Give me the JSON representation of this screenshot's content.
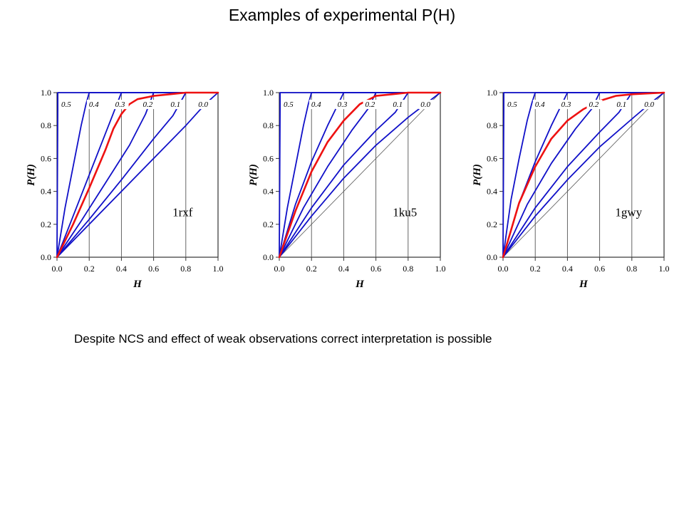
{
  "title": "Examples of experimental P(H)",
  "caption": "Despite NCS and effect of weak observations correct interpretation is possible",
  "colors": {
    "curves": "#1010c8",
    "highlight": "#ee1111",
    "grid": "#555555",
    "frame": "#333333"
  },
  "chart_data": [
    {
      "type": "line",
      "label": "1rxf",
      "xlabel": "H",
      "ylabel": "P(H)",
      "xlim": [
        0,
        1
      ],
      "ylim": [
        0,
        1
      ],
      "xticks": [
        "0.0",
        "0.2",
        "0.4",
        "0.6",
        "0.8",
        "1.0"
      ],
      "yticks": [
        "0.0",
        "0.2",
        "0.4",
        "0.6",
        "0.8",
        "1.0"
      ],
      "vlines": [
        0.2,
        0.4,
        0.6,
        0.8
      ],
      "diagonal": false,
      "curve_labels": [
        "0.5",
        "0.4",
        "0.3",
        "0.2",
        "0.1",
        "0.0"
      ],
      "series": [
        {
          "label": "0.5",
          "x": [
            0,
            0.005,
            0.005,
            1
          ],
          "y": [
            0,
            0.9,
            1.0,
            1.0
          ]
        },
        {
          "label": "0.4",
          "x": [
            0,
            0.05,
            0.1,
            0.15,
            0.18,
            0.2,
            1
          ],
          "y": [
            0,
            0.3,
            0.55,
            0.8,
            0.93,
            1.0,
            1.0
          ]
        },
        {
          "label": "0.3",
          "x": [
            0,
            0.1,
            0.2,
            0.3,
            0.36,
            0.4,
            1
          ],
          "y": [
            0,
            0.25,
            0.5,
            0.75,
            0.9,
            1.0,
            1.0
          ]
        },
        {
          "label": "0.2",
          "x": [
            0,
            0.15,
            0.3,
            0.45,
            0.55,
            0.6,
            1
          ],
          "y": [
            0,
            0.22,
            0.45,
            0.68,
            0.87,
            1.0,
            1.0
          ]
        },
        {
          "label": "0.1",
          "x": [
            0,
            0.2,
            0.4,
            0.6,
            0.72,
            0.8,
            1
          ],
          "y": [
            0,
            0.23,
            0.47,
            0.72,
            0.86,
            1.0,
            1.0
          ]
        },
        {
          "label": "0.0",
          "x": [
            0,
            0.2,
            0.4,
            0.6,
            0.8,
            0.92,
            1
          ],
          "y": [
            0,
            0.2,
            0.4,
            0.6,
            0.8,
            0.93,
            1.0
          ]
        },
        {
          "label": "highlight",
          "highlight": true,
          "x": [
            0,
            0.1,
            0.2,
            0.3,
            0.35,
            0.4,
            0.45,
            0.5,
            0.6,
            0.7,
            0.8,
            1
          ],
          "y": [
            0,
            0.2,
            0.42,
            0.65,
            0.78,
            0.87,
            0.93,
            0.96,
            0.98,
            0.99,
            1.0,
            1.0
          ]
        }
      ]
    },
    {
      "type": "line",
      "label": "1ku5",
      "xlabel": "H",
      "ylabel": "P(H)",
      "xlim": [
        0,
        1
      ],
      "ylim": [
        0,
        1
      ],
      "xticks": [
        "0.0",
        "0.2",
        "0.4",
        "0.6",
        "0.8",
        "1.0"
      ],
      "yticks": [
        "0.0",
        "0.2",
        "0.4",
        "0.6",
        "0.8",
        "1.0"
      ],
      "vlines": [
        0.2,
        0.4,
        0.6,
        0.8
      ],
      "diagonal": true,
      "curve_labels": [
        "0.5",
        "0.4",
        "0.3",
        "0.2",
        "0.1",
        "0.0"
      ],
      "series": [
        {
          "label": "0.5",
          "x": [
            0,
            0.005,
            0.005,
            1
          ],
          "y": [
            0,
            0.9,
            1.0,
            1.0
          ]
        },
        {
          "label": "0.4",
          "x": [
            0,
            0.05,
            0.1,
            0.15,
            0.18,
            0.2,
            1
          ],
          "y": [
            0,
            0.3,
            0.55,
            0.8,
            0.93,
            1.0,
            1.0
          ]
        },
        {
          "label": "0.3",
          "x": [
            0,
            0.1,
            0.2,
            0.3,
            0.36,
            0.4,
            1
          ],
          "y": [
            0,
            0.32,
            0.58,
            0.8,
            0.92,
            1.0,
            1.0
          ]
        },
        {
          "label": "0.2",
          "x": [
            0,
            0.15,
            0.3,
            0.45,
            0.55,
            0.6,
            1
          ],
          "y": [
            0,
            0.3,
            0.55,
            0.77,
            0.9,
            1.0,
            1.0
          ]
        },
        {
          "label": "0.1",
          "x": [
            0,
            0.2,
            0.4,
            0.6,
            0.72,
            0.8,
            1
          ],
          "y": [
            0,
            0.3,
            0.56,
            0.77,
            0.88,
            1.0,
            1.0
          ]
        },
        {
          "label": "0.0",
          "x": [
            0,
            0.2,
            0.4,
            0.6,
            0.8,
            0.92,
            1
          ],
          "y": [
            0,
            0.25,
            0.48,
            0.68,
            0.85,
            0.94,
            1.0
          ]
        },
        {
          "label": "highlight",
          "highlight": true,
          "x": [
            0,
            0.1,
            0.2,
            0.3,
            0.4,
            0.5,
            0.6,
            0.7,
            0.8,
            1
          ],
          "y": [
            0,
            0.28,
            0.52,
            0.7,
            0.83,
            0.93,
            0.98,
            0.99,
            1.0,
            1.0
          ]
        }
      ]
    },
    {
      "type": "line",
      "label": "1gwy",
      "xlabel": "H",
      "ylabel": "P(H)",
      "xlim": [
        0,
        1
      ],
      "ylim": [
        0,
        1
      ],
      "xticks": [
        "0.0",
        "0.2",
        "0.4",
        "0.6",
        "0.8",
        "1.0"
      ],
      "yticks": [
        "0.0",
        "0.2",
        "0.4",
        "0.6",
        "0.8",
        "1.0"
      ],
      "vlines": [
        0.2,
        0.4,
        0.6,
        0.8
      ],
      "diagonal": true,
      "curve_labels": [
        "0.5",
        "0.4",
        "0.3",
        "0.2",
        "0.1",
        "0.0"
      ],
      "series": [
        {
          "label": "0.5",
          "x": [
            0,
            0.005,
            0.005,
            1
          ],
          "y": [
            0,
            0.9,
            1.0,
            1.0
          ]
        },
        {
          "label": "0.4",
          "x": [
            0,
            0.05,
            0.1,
            0.15,
            0.18,
            0.2,
            1
          ],
          "y": [
            0,
            0.35,
            0.6,
            0.83,
            0.94,
            1.0,
            1.0
          ]
        },
        {
          "label": "0.3",
          "x": [
            0,
            0.1,
            0.2,
            0.3,
            0.36,
            0.4,
            1
          ],
          "y": [
            0,
            0.33,
            0.58,
            0.8,
            0.92,
            1.0,
            1.0
          ]
        },
        {
          "label": "0.2",
          "x": [
            0,
            0.15,
            0.3,
            0.45,
            0.55,
            0.6,
            1
          ],
          "y": [
            0,
            0.32,
            0.57,
            0.78,
            0.9,
            1.0,
            1.0
          ]
        },
        {
          "label": "0.1",
          "x": [
            0,
            0.2,
            0.4,
            0.6,
            0.72,
            0.8,
            1
          ],
          "y": [
            0,
            0.3,
            0.55,
            0.76,
            0.88,
            1.0,
            1.0
          ]
        },
        {
          "label": "0.0",
          "x": [
            0,
            0.2,
            0.4,
            0.6,
            0.8,
            0.92,
            1
          ],
          "y": [
            0,
            0.25,
            0.47,
            0.67,
            0.84,
            0.94,
            1.0
          ]
        },
        {
          "label": "highlight",
          "highlight": true,
          "x": [
            0,
            0.1,
            0.2,
            0.3,
            0.4,
            0.5,
            0.6,
            0.7,
            0.8,
            1
          ],
          "y": [
            0,
            0.33,
            0.55,
            0.72,
            0.83,
            0.9,
            0.95,
            0.98,
            0.99,
            1.0
          ]
        }
      ]
    }
  ]
}
